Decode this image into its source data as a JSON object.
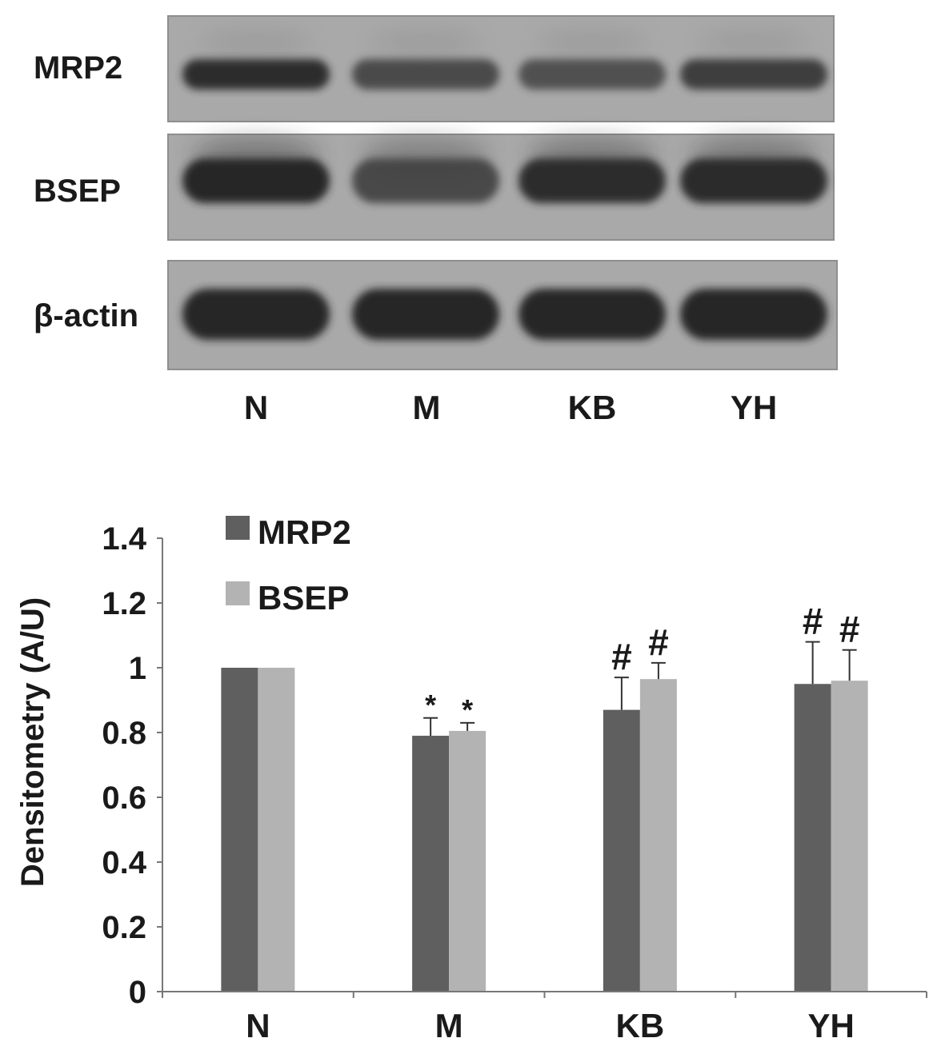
{
  "blot": {
    "rows": [
      {
        "label": "MRP2",
        "lane_intensity": [
          0.95,
          0.72,
          0.68,
          0.82
        ]
      },
      {
        "label": "BSEP",
        "lane_intensity": [
          1.0,
          0.75,
          0.95,
          0.97
        ]
      },
      {
        "label": "β-actin",
        "lane_intensity": [
          1.0,
          1.0,
          1.0,
          1.0
        ]
      }
    ],
    "lanes": [
      "N",
      "M",
      "KB",
      "YH"
    ]
  },
  "chart_data": {
    "type": "bar",
    "categories": [
      "N",
      "M",
      "KB",
      "YH"
    ],
    "series": [
      {
        "name": "MRP2",
        "color": "#5f5f5f",
        "values": [
          1.0,
          0.79,
          0.87,
          0.95
        ],
        "errors": [
          0.0,
          0.055,
          0.1,
          0.13
        ],
        "markers": [
          "",
          "*",
          "#",
          "#"
        ]
      },
      {
        "name": "BSEP",
        "color": "#b3b3b3",
        "values": [
          1.0,
          0.805,
          0.965,
          0.96
        ],
        "errors": [
          0.0,
          0.025,
          0.05,
          0.095
        ],
        "markers": [
          "",
          "*",
          "#",
          "#"
        ]
      }
    ],
    "ylabel": "Densitometry (A/U)",
    "ylim": [
      0,
      1.4
    ],
    "yticks": [
      "0",
      "0.2",
      "0.4",
      "0.6",
      "0.8",
      "1",
      "1.2",
      "1.4"
    ],
    "grid": false,
    "legend_position": "top-left"
  }
}
